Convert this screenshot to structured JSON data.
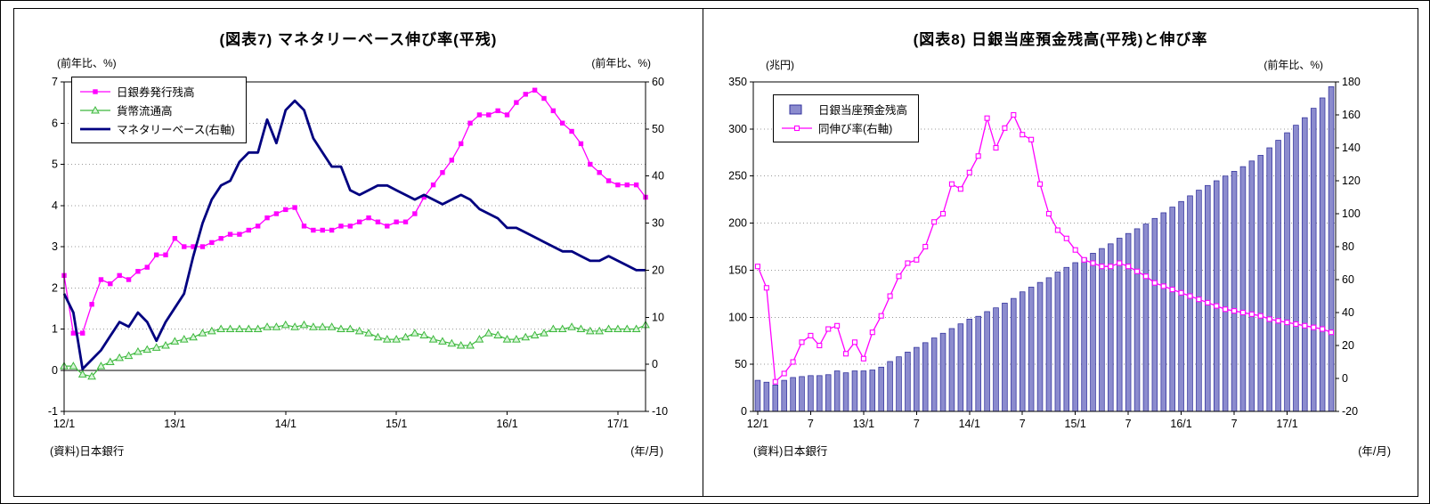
{
  "page": {
    "background": "#FFFFFF"
  },
  "chart_data": [
    {
      "type": "line",
      "title": "(図表7) マネタリーベース伸び率(平残)",
      "source": "(資料)日本銀行",
      "x_unit_note": "(年/月)",
      "x_mode": "edge",
      "x_frequency": "monthly",
      "zero_line": 0,
      "grid": "horizontal-dotted",
      "legend_position": "top-left",
      "left_axis": {
        "label": "(前年比、%)",
        "min": -1,
        "max": 7,
        "step": 1
      },
      "right_axis": {
        "label": "(前年比、%)",
        "min": -10,
        "max": 60,
        "step": 10
      },
      "x_tick_positions": [
        0,
        12,
        24,
        36,
        48,
        60
      ],
      "x_tick_labels": [
        "12/1",
        "13/1",
        "14/1",
        "15/1",
        "16/1",
        "17/1"
      ],
      "series": [
        {
          "name": "日銀券発行残高",
          "type": "line",
          "axis": "left",
          "color": "#FF00FF",
          "marker": "square",
          "line_width": 1.3,
          "values": [
            2.3,
            0.9,
            0.9,
            1.6,
            2.2,
            2.1,
            2.3,
            2.2,
            2.4,
            2.5,
            2.8,
            2.8,
            3.2,
            3.0,
            3.0,
            3.0,
            3.1,
            3.2,
            3.3,
            3.3,
            3.4,
            3.5,
            3.7,
            3.8,
            3.9,
            3.95,
            3.5,
            3.4,
            3.4,
            3.4,
            3.5,
            3.5,
            3.6,
            3.7,
            3.6,
            3.5,
            3.6,
            3.6,
            3.8,
            4.2,
            4.5,
            4.8,
            5.1,
            5.5,
            6.0,
            6.2,
            6.2,
            6.3,
            6.2,
            6.5,
            6.7,
            6.8,
            6.6,
            6.3,
            6.0,
            5.8,
            5.5,
            5.0,
            4.8,
            4.6,
            4.5,
            4.5,
            4.5,
            4.2
          ]
        },
        {
          "name": "貨幣流通高",
          "type": "line",
          "axis": "left",
          "color": "#3CB83C",
          "marker": "triangle",
          "marker_fill": "#D8F5D8",
          "line_width": 1.2,
          "values": [
            0.1,
            0.1,
            -0.1,
            -0.15,
            0.1,
            0.2,
            0.3,
            0.35,
            0.45,
            0.5,
            0.55,
            0.6,
            0.7,
            0.75,
            0.8,
            0.9,
            0.95,
            1.0,
            1.0,
            1.0,
            1.0,
            1.0,
            1.05,
            1.05,
            1.1,
            1.05,
            1.1,
            1.05,
            1.05,
            1.05,
            1.0,
            1.0,
            0.95,
            0.9,
            0.8,
            0.75,
            0.75,
            0.8,
            0.9,
            0.85,
            0.75,
            0.7,
            0.65,
            0.6,
            0.6,
            0.75,
            0.9,
            0.85,
            0.75,
            0.75,
            0.8,
            0.85,
            0.9,
            1.0,
            1.0,
            1.05,
            1.0,
            0.95,
            0.95,
            1.0,
            1.0,
            1.0,
            1.0,
            1.1
          ]
        },
        {
          "name": "マネタリーベース(右軸)",
          "type": "line",
          "axis": "right",
          "color": "#000080",
          "marker": "none",
          "line_width": 2.8,
          "values": [
            15,
            11,
            -1,
            1,
            3,
            6,
            9,
            8,
            11,
            9,
            5,
            9,
            12,
            15,
            23,
            30,
            35,
            38,
            39,
            43,
            45,
            45,
            52,
            47,
            54,
            56,
            54,
            48,
            45,
            42,
            42,
            37,
            36,
            37,
            38,
            38,
            37,
            36,
            35,
            36,
            35,
            34,
            35,
            36,
            35,
            33,
            32,
            31,
            29,
            29,
            28,
            27,
            26,
            25,
            24,
            24,
            23,
            22,
            22,
            23,
            22,
            21,
            20,
            20
          ]
        }
      ]
    },
    {
      "type": "bar+line",
      "title": "(図表8) 日銀当座預金残高(平残)と伸び率",
      "source": "(資料)日本銀行",
      "x_unit_note": "(年/月)",
      "x_mode": "center",
      "x_frequency": "monthly",
      "grid": "horizontal-dotted",
      "legend_position": "top-left",
      "left_axis": {
        "label": "(兆円)",
        "min": 0,
        "max": 350,
        "step": 50
      },
      "right_axis": {
        "label": "(前年比、%)",
        "min": -20,
        "max": 180,
        "step": 20
      },
      "x_tick_positions": [
        0,
        6,
        12,
        18,
        24,
        30,
        36,
        42,
        48,
        54,
        60
      ],
      "x_tick_labels": [
        "12/1",
        "7",
        "13/1",
        "7",
        "14/1",
        "7",
        "15/1",
        "7",
        "16/1",
        "7",
        "17/1"
      ],
      "series": [
        {
          "name": "日銀当座預金残高",
          "type": "bar",
          "axis": "left",
          "color": "#8C8CCE",
          "border_color": "#30309C",
          "values": [
            33,
            31,
            28,
            33,
            36,
            37,
            38,
            38,
            39,
            43,
            41,
            43,
            43,
            44,
            47,
            53,
            58,
            63,
            68,
            73,
            78,
            83,
            88,
            93,
            98,
            101,
            106,
            110,
            115,
            120,
            127,
            132,
            137,
            142,
            148,
            153,
            158,
            163,
            168,
            173,
            178,
            184,
            189,
            194,
            199,
            205,
            211,
            217,
            223,
            229,
            235,
            240,
            245,
            250,
            255,
            260,
            266,
            272,
            280,
            288,
            296,
            304,
            312,
            322,
            333,
            345
          ]
        },
        {
          "name": "同伸び率(右軸)",
          "type": "line",
          "axis": "right",
          "color": "#FF00FF",
          "marker": "open-square",
          "line_width": 1.3,
          "values": [
            68,
            55,
            -2,
            3,
            10,
            22,
            26,
            20,
            30,
            32,
            15,
            22,
            12,
            28,
            38,
            50,
            62,
            70,
            72,
            80,
            95,
            100,
            118,
            115,
            125,
            135,
            158,
            140,
            152,
            160,
            148,
            145,
            118,
            100,
            90,
            85,
            78,
            72,
            70,
            68,
            68,
            70,
            68,
            65,
            62,
            58,
            56,
            54,
            52,
            50,
            48,
            46,
            44,
            42,
            41,
            40,
            39,
            38,
            36,
            35,
            34,
            33,
            32,
            31,
            30,
            28
          ]
        }
      ]
    }
  ]
}
